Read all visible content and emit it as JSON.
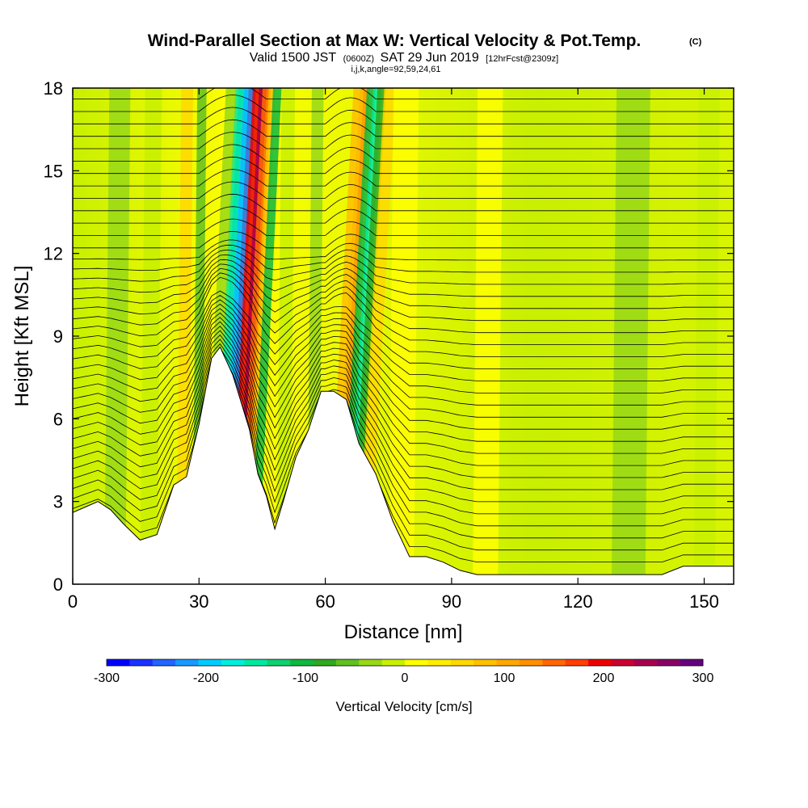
{
  "chart_data": {
    "type": "heatmap",
    "title": "Wind-Parallel Section at Max W: Vertical Velocity & Pot.Temp.",
    "copyright": "(C)",
    "subtitle_main_a": "Valid 1500 JST",
    "subtitle_small_a": "(0600Z)",
    "subtitle_main_b": "SAT 29 Jun 2019",
    "subtitle_small_b": "[12hrFcst@2309z]",
    "subtitle_line2": "i,j,k,angle=92,59,24,61",
    "xlabel": "Distance [nm]",
    "ylabel": "Height [Kft MSL]",
    "xlim": [
      0,
      157
    ],
    "ylim": [
      0,
      18
    ],
    "x_ticks": [
      0,
      30,
      60,
      90,
      120,
      150
    ],
    "y_ticks": [
      0,
      3,
      6,
      9,
      12,
      15,
      18
    ],
    "colorbar": {
      "label": "Vertical Velocity [cm/s]",
      "range": [
        -300,
        300
      ],
      "tick_values": [
        -300,
        -200,
        -100,
        0,
        100,
        200,
        300
      ],
      "colors": [
        "#0000ff",
        "#1a33ff",
        "#2266ff",
        "#1899ff",
        "#00ccff",
        "#00eedd",
        "#00e8a0",
        "#10d070",
        "#10b840",
        "#30a820",
        "#60c020",
        "#98d818",
        "#c8f000",
        "#ffff00",
        "#ffee00",
        "#ffd800",
        "#ffc000",
        "#ffa800",
        "#ff9000",
        "#ff6800",
        "#ff4000",
        "#ee0000",
        "#cc0033",
        "#a80050",
        "#880066",
        "#660080"
      ]
    },
    "terrain_profile": {
      "x": [
        0,
        3,
        6,
        9,
        12,
        16,
        20,
        24,
        27,
        30,
        33,
        35,
        38,
        40,
        42,
        44,
        46,
        48,
        50,
        53,
        56,
        59,
        62,
        65,
        68,
        72,
        76,
        80,
        84,
        88,
        92,
        96,
        100,
        110,
        120,
        130,
        140,
        145,
        150,
        157
      ],
      "height": [
        2.6,
        2.8,
        3.0,
        2.7,
        2.2,
        1.6,
        1.8,
        3.6,
        3.9,
        5.8,
        8.2,
        8.6,
        7.6,
        6.6,
        5.6,
        4.0,
        3.2,
        2.0,
        3.0,
        4.6,
        5.6,
        7.0,
        7.0,
        6.7,
        5.1,
        4.0,
        2.3,
        1.0,
        1.0,
        0.8,
        0.5,
        0.35,
        0.35,
        0.35,
        0.35,
        0.35,
        0.35,
        0.65,
        0.65,
        0.65
      ]
    },
    "updraft_max_cm_s": 300,
    "downdraft_min_cm_s": -300,
    "contour_variable": "Potential temperature"
  }
}
